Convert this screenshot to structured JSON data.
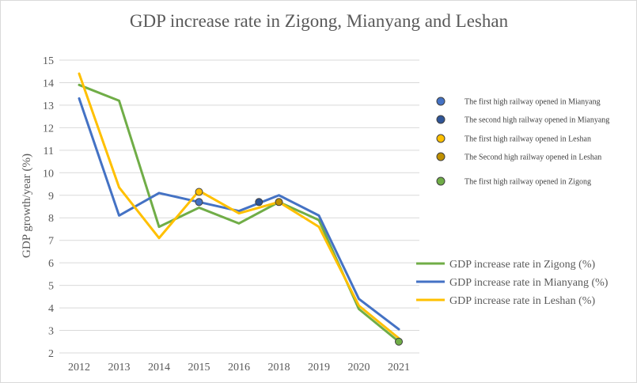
{
  "chart_data": {
    "type": "line",
    "title": "GDP increase rate in Zigong, Mianyang and Leshan",
    "xlabel": "",
    "ylabel": "GDP growth/year (%)",
    "categories": [
      "2012",
      "2013",
      "2014",
      "2015",
      "2016",
      "2018",
      "2019",
      "2020",
      "2021"
    ],
    "ylim": [
      2,
      15
    ],
    "yticks": [
      2,
      3,
      4,
      5,
      6,
      7,
      8,
      9,
      10,
      11,
      12,
      13,
      14,
      15
    ],
    "grid": true,
    "series": [
      {
        "name": "GDP increase rate in Zigong   (%)",
        "color": "#70ad47",
        "values": [
          13.9,
          13.2,
          7.6,
          8.45,
          7.75,
          8.7,
          7.9,
          3.95,
          2.5
        ]
      },
      {
        "name": "GDP increase rate in Mianyang (%)",
        "color": "#4472c4",
        "values": [
          13.3,
          8.1,
          9.1,
          8.7,
          8.3,
          9.0,
          8.1,
          4.4,
          3.05
        ]
      },
      {
        "name": "GDP increase rate in Leshan (%)",
        "color": "#ffc000",
        "values": [
          14.4,
          9.35,
          7.1,
          9.2,
          8.2,
          8.7,
          7.6,
          4.1,
          2.65
        ]
      }
    ],
    "markers": [
      {
        "label": "The first high railway opened in Mianyang",
        "color": "#4472c4",
        "x": 3,
        "y": 8.7
      },
      {
        "label": "The second high railway opened in Mianyang",
        "color": "#2f5597",
        "x": 4.5,
        "y": 8.7
      },
      {
        "label": "The first high railway opened in Leshan",
        "color": "#ffc000",
        "x": 3,
        "y": 9.15
      },
      {
        "label": "The Second high railway opened in Leshan",
        "color": "#bf9000",
        "x": 5,
        "y": 8.7
      },
      {
        "label": "The first high railway opened in Zigong",
        "color": "#70ad47",
        "x": 8,
        "y": 2.5
      }
    ]
  }
}
